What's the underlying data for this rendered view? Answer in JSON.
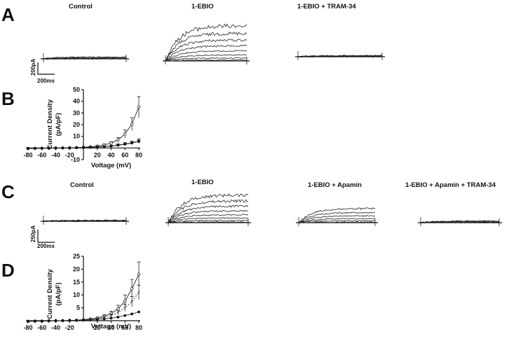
{
  "panels": {
    "A": {
      "letter": "A",
      "titles": [
        "Control",
        "1-EBIO",
        "1-EBIO + TRAM-34"
      ],
      "scale_current": "200pA",
      "scale_time": "200ms"
    },
    "C": {
      "letter": "C",
      "titles": [
        "Control",
        "1-EBIO",
        "1-EBIO + Apamin",
        "1-EBIO + Apamin + TRAM-34"
      ],
      "scale_current": "250pA",
      "scale_time": "200ms"
    },
    "B": {
      "letter": "B"
    },
    "D": {
      "letter": "D"
    }
  },
  "chart_data": [
    {
      "panel": "A",
      "type": "line",
      "description_of_traces": "whole-cell current traces; sizes read relative to the 200pA scale bar",
      "traces": [
        {
          "condition": "Control",
          "peak_current_pA": 30,
          "sweeps": 6
        },
        {
          "condition": "1-EBIO",
          "peak_current_pA": 590,
          "sweeps": 8
        },
        {
          "condition": "1-EBIO + TRAM-34",
          "peak_current_pA": 20,
          "sweeps": 6
        }
      ]
    },
    {
      "panel": "B",
      "type": "line",
      "xlabel": "Voltage (mV)",
      "ylabel": "Current Density (pA/pF)",
      "xlim": [
        -80,
        80
      ],
      "ylim": [
        -10,
        50
      ],
      "xticks": [
        -80,
        -60,
        -40,
        -20,
        20,
        40,
        60,
        80
      ],
      "yticks": [
        -10,
        10,
        20,
        30,
        40,
        50
      ],
      "x": [
        -80,
        -70,
        -60,
        -50,
        -40,
        -30,
        -20,
        -10,
        0,
        10,
        20,
        30,
        40,
        50,
        60,
        70,
        80
      ],
      "series": [
        {
          "marker": "open",
          "line": "solid",
          "values": [
            -0.5,
            -0.4,
            -0.3,
            -0.2,
            -0.1,
            0,
            0.1,
            0.3,
            0.6,
            1.0,
            1.6,
            2.6,
            4.2,
            7.0,
            12.0,
            20.5,
            35.0
          ],
          "errors": [
            0.3,
            0.3,
            0.3,
            0.3,
            0.3,
            0.3,
            0.3,
            0.3,
            0.4,
            0.5,
            0.6,
            0.8,
            1.2,
            2.0,
            3.5,
            5.5,
            9.0
          ]
        },
        {
          "marker": "star",
          "line": "dashed",
          "values": [
            -0.4,
            -0.3,
            -0.2,
            -0.1,
            0,
            0,
            0.1,
            0.2,
            0.4,
            0.6,
            0.9,
            1.3,
            1.8,
            2.6,
            3.6,
            4.6,
            6.2
          ],
          "errors": [
            0.2,
            0.2,
            0.2,
            0.2,
            0.2,
            0.2,
            0.2,
            0.2,
            0.3,
            0.3,
            0.4,
            0.5,
            0.6,
            0.8,
            1.0,
            1.2,
            1.5
          ]
        },
        {
          "marker": "filled",
          "line": "solid",
          "values": [
            -0.3,
            -0.2,
            -0.2,
            -0.1,
            0,
            0,
            0.1,
            0.2,
            0.3,
            0.5,
            0.8,
            1.1,
            1.6,
            2.3,
            3.2,
            4.2,
            5.5
          ],
          "errors": [
            0.2,
            0.2,
            0.2,
            0.2,
            0.2,
            0.2,
            0.2,
            0.2,
            0.2,
            0.3,
            0.3,
            0.4,
            0.5,
            0.6,
            0.7,
            0.9,
            1.2
          ]
        }
      ]
    },
    {
      "panel": "C",
      "type": "line",
      "description_of_traces": "whole-cell current traces; sizes read relative to the 250pA scale bar",
      "traces": [
        {
          "condition": "Control",
          "peak_current_pA": 20,
          "sweeps": 6
        },
        {
          "condition": "1-EBIO",
          "peak_current_pA": 550,
          "sweeps": 8
        },
        {
          "condition": "1-EBIO + Apamin",
          "peak_current_pA": 280,
          "sweeps": 6
        },
        {
          "condition": "1-EBIO + Apamin + TRAM-34",
          "peak_current_pA": 35,
          "sweeps": 6
        }
      ]
    },
    {
      "panel": "D",
      "type": "line",
      "xlabel": "Voltage (mV)",
      "ylabel": "Current Density (pA/pF)",
      "xlim": [
        -80,
        80
      ],
      "ylim": [
        0,
        25
      ],
      "xticks": [
        -80,
        -60,
        -40,
        -20,
        20,
        40,
        60,
        80
      ],
      "yticks": [
        5,
        10,
        15,
        20,
        25
      ],
      "x": [
        -80,
        -70,
        -60,
        -50,
        -40,
        -30,
        -20,
        -10,
        0,
        10,
        20,
        30,
        40,
        50,
        60,
        70,
        80
      ],
      "series": [
        {
          "marker": "open",
          "line": "solid",
          "values": [
            -0.3,
            -0.2,
            -0.2,
            -0.1,
            0,
            0,
            0.1,
            0.2,
            0.4,
            0.7,
            1.1,
            1.7,
            2.8,
            4.6,
            7.6,
            12.4,
            18.0
          ],
          "errors": [
            0.2,
            0.2,
            0.2,
            0.2,
            0.2,
            0.2,
            0.2,
            0.2,
            0.3,
            0.3,
            0.4,
            0.6,
            0.9,
            1.4,
            2.4,
            3.6,
            4.8
          ]
        },
        {
          "marker": "star",
          "line": "dashed",
          "values": [
            -0.2,
            -0.2,
            -0.1,
            -0.1,
            0,
            0,
            0.1,
            0.2,
            0.3,
            0.5,
            0.8,
            1.3,
            2.0,
            3.2,
            5.0,
            7.4,
            11.0
          ],
          "errors": [
            0.2,
            0.2,
            0.2,
            0.2,
            0.2,
            0.2,
            0.2,
            0.2,
            0.2,
            0.3,
            0.3,
            0.4,
            0.6,
            0.9,
            1.4,
            2.0,
            2.8
          ]
        },
        {
          "marker": "filled",
          "line": "solid",
          "values": [
            -0.2,
            -0.1,
            -0.1,
            0,
            0,
            0,
            0.1,
            0.1,
            0.2,
            0.3,
            0.5,
            0.7,
            1.0,
            1.4,
            2.0,
            2.6,
            3.4
          ],
          "errors": [
            0.1,
            0.1,
            0.1,
            0.1,
            0.1,
            0.1,
            0.1,
            0.1,
            0.1,
            0.2,
            0.2,
            0.2,
            0.3,
            0.3,
            0.4,
            0.4,
            0.5
          ]
        }
      ]
    }
  ]
}
